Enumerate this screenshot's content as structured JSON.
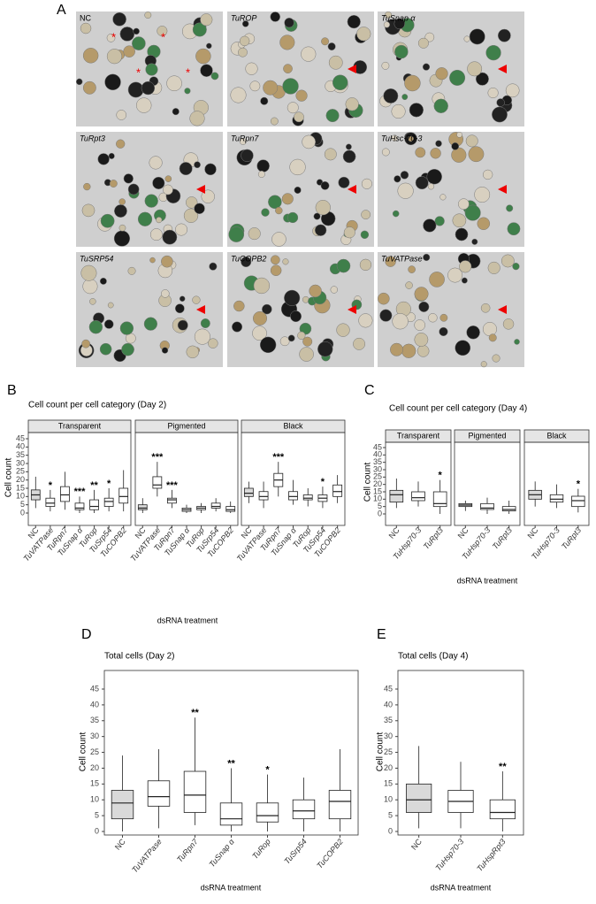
{
  "panel_a": {
    "label": "A",
    "tiles": [
      {
        "label": "NC",
        "annotations": [
          "*",
          "*",
          "*",
          "*"
        ]
      },
      {
        "label": "TuROP"
      },
      {
        "label": "TuSnap α"
      },
      {
        "label": "TuRpt3"
      },
      {
        "label": "TuRpn7"
      },
      {
        "label": "TuHsc-70-3"
      },
      {
        "label": "TuSRP54"
      },
      {
        "label": "TuCOPB2"
      },
      {
        "label": "TuVATPase"
      }
    ]
  },
  "chart_data": [
    {
      "type": "boxplot",
      "label": "B",
      "title": "Cell count per cell category (Day 2)",
      "ylabel": "Cell count",
      "xlabel": "dsRNA treatment",
      "ylim": [
        0,
        45
      ],
      "yticks": [
        0,
        5,
        10,
        15,
        20,
        25,
        30,
        35,
        40,
        45
      ],
      "facets": [
        {
          "strip": "Transparent",
          "categories": [
            "NC",
            "TuVATPase",
            "TuRpn7",
            "TuSnap α",
            "TuRop",
            "TuSrp54",
            "TuCOPB2"
          ],
          "box_colors": [
            "#d9d9d9",
            "#ffffff",
            "#ffffff",
            "#ffffff",
            "#ffffff",
            "#ffffff",
            "#ffffff"
          ],
          "boxes": [
            [
              3,
              8,
              11,
              14,
              22
            ],
            [
              1,
              4,
              6,
              9,
              14
            ],
            [
              2,
              7,
              11,
              16,
              25
            ],
            [
              0,
              2,
              3,
              6,
              10
            ],
            [
              0,
              2,
              4,
              8,
              14
            ],
            [
              1,
              4,
              7,
              9,
              15
            ],
            [
              1,
              6,
              10,
              15,
              26
            ]
          ],
          "significance": [
            null,
            "*",
            null,
            "***",
            "**",
            "*",
            null
          ]
        },
        {
          "strip": "Pigmented",
          "categories": [
            "NC",
            "TuVATPase",
            "TuRpn7",
            "TuSnap α",
            "TuRop",
            "TuSrp54",
            "TuCOPB2"
          ],
          "box_colors": [
            "#d9d9d9",
            "#ffffff",
            "#ffffff",
            "#ffffff",
            "#ffffff",
            "#ffffff",
            "#ffffff"
          ],
          "boxes": [
            [
              0,
              2,
              3,
              5,
              9
            ],
            [
              10,
              15,
              17,
              22,
              31
            ],
            [
              3,
              6,
              8,
              9,
              14
            ],
            [
              0,
              1,
              2,
              3,
              5
            ],
            [
              0,
              2,
              3,
              4,
              6
            ],
            [
              1,
              3,
              4,
              6,
              9
            ],
            [
              0,
              1,
              2,
              4,
              7
            ]
          ],
          "significance": [
            null,
            "***",
            "***",
            null,
            null,
            null,
            null
          ]
        },
        {
          "strip": "Black",
          "categories": [
            "NC",
            "TuVATPase",
            "TuRpn7",
            "TuSnap α",
            "TuRop",
            "TuSrp54",
            "TuCOPB2"
          ],
          "box_colors": [
            "#d9d9d9",
            "#ffffff",
            "#ffffff",
            "#ffffff",
            "#ffffff",
            "#ffffff",
            "#ffffff"
          ],
          "boxes": [
            [
              6,
              10,
              12,
              15,
              19
            ],
            [
              3,
              8,
              10,
              13,
              19
            ],
            [
              10,
              16,
              20,
              24,
              31
            ],
            [
              5,
              8,
              10,
              13,
              20
            ],
            [
              4,
              8,
              9,
              11,
              15
            ],
            [
              3,
              7,
              9,
              11,
              16
            ],
            [
              6,
              10,
              13,
              17,
              23
            ]
          ],
          "significance": [
            null,
            null,
            "***",
            null,
            null,
            "*",
            null
          ]
        }
      ]
    },
    {
      "type": "boxplot",
      "label": "C",
      "title": "Cell count per cell category (Day 4)",
      "ylabel": "Cell count",
      "xlabel": "dsRNA treatment",
      "ylim": [
        0,
        45
      ],
      "yticks": [
        0,
        5,
        10,
        15,
        20,
        25,
        30,
        35,
        40,
        45
      ],
      "facets": [
        {
          "strip": "Transparent",
          "categories": [
            "NC",
            "TuHsp70-3",
            "TuRpt3"
          ],
          "box_colors": [
            "#d9d9d9",
            "#ffffff",
            "#ffffff"
          ],
          "boxes": [
            [
              4,
              8,
              13,
              16,
              24
            ],
            [
              5,
              9,
              11,
              15,
              22
            ],
            [
              0,
              5,
              7,
              15,
              23
            ]
          ],
          "significance": [
            null,
            null,
            "*"
          ]
        },
        {
          "strip": "Pigmented",
          "categories": [
            "NC",
            "TuHsp70-3",
            "TuRpt3"
          ],
          "box_colors": [
            "#d9d9d9",
            "#ffffff",
            "#ffffff"
          ],
          "boxes": [
            [
              2,
              5,
              6,
              7,
              9
            ],
            [
              0,
              3,
              4,
              7,
              11
            ],
            [
              0,
              2,
              3,
              5,
              9
            ]
          ],
          "significance": [
            null,
            null,
            null
          ]
        },
        {
          "strip": "Black",
          "categories": [
            "NC",
            "TuHsp70-3",
            "TuRpt3"
          ],
          "box_colors": [
            "#d9d9d9",
            "#ffffff",
            "#ffffff"
          ],
          "boxes": [
            [
              5,
              10,
              13,
              16,
              22
            ],
            [
              4,
              8,
              10,
              13,
              20
            ],
            [
              1,
              5,
              9,
              12,
              17
            ]
          ],
          "significance": [
            null,
            null,
            "*"
          ]
        }
      ]
    },
    {
      "type": "boxplot",
      "label": "D",
      "title": "Total cells (Day 2)",
      "ylabel": "Cell count",
      "xlabel": "dsRNA treatment",
      "ylim": [
        0,
        45
      ],
      "yticks": [
        0,
        5,
        10,
        15,
        20,
        25,
        30,
        35,
        40,
        45
      ],
      "facets": [
        {
          "categories": [
            "NC",
            "TuVATPase",
            "TuRpn7",
            "TuSnap α",
            "TuRop",
            "TuSrp54",
            "TuCOPB2"
          ],
          "box_colors": [
            "#d9d9d9",
            "#ffffff",
            "#ffffff",
            "#ffffff",
            "#ffffff",
            "#ffffff",
            "#ffffff"
          ],
          "boxes": [
            [
              0,
              4,
              9,
              13,
              24
            ],
            [
              1,
              8,
              11,
              16,
              26
            ],
            [
              2,
              6,
              11.5,
              19,
              36
            ],
            [
              0,
              2,
              4,
              9,
              20
            ],
            [
              0,
              3,
              5,
              9,
              18
            ],
            [
              0,
              4,
              6.5,
              10,
              17
            ],
            [
              0,
              4,
              9.5,
              13,
              26
            ]
          ],
          "significance": [
            null,
            null,
            "**",
            "**",
            "*",
            null,
            null
          ]
        }
      ]
    },
    {
      "type": "boxplot",
      "label": "E",
      "title": "Total cells (Day 4)",
      "ylabel": "Cell count",
      "xlabel": "dsRNA treatment",
      "ylim": [
        0,
        45
      ],
      "yticks": [
        0,
        5,
        10,
        15,
        20,
        25,
        30,
        35,
        40,
        45
      ],
      "facets": [
        {
          "categories": [
            "NC",
            "TuHsp70-3",
            "TuHspRpt3"
          ],
          "box_colors": [
            "#d9d9d9",
            "#ffffff",
            "#ffffff"
          ],
          "boxes": [
            [
              1,
              6,
              10,
              15,
              27
            ],
            [
              1,
              6,
              9.5,
              13,
              22
            ],
            [
              0,
              4,
              6,
              10,
              19
            ]
          ],
          "significance": [
            null,
            null,
            "**"
          ]
        }
      ]
    }
  ]
}
